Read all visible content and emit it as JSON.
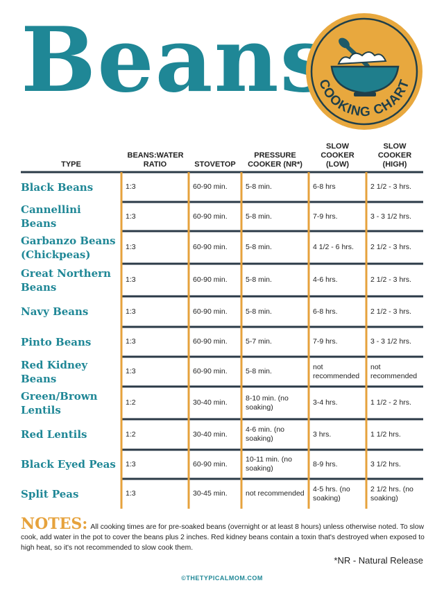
{
  "header": {
    "title": "Beans",
    "badge": "COOKING CHART"
  },
  "table": {
    "columns": [
      "TYPE",
      "BEANS:WATER RATIO",
      "STOVETOP",
      "PRESSURE COOKER (NR*)",
      "SLOW COOKER (LOW)",
      "SLOW COOKER (HIGH)"
    ],
    "rows": [
      [
        "Black Beans",
        "1:3",
        "60-90 min.",
        "5-8 min.",
        "6-8 hrs",
        "2 1/2 - 3 hrs."
      ],
      [
        "Cannellini Beans",
        "1:3",
        "60-90 min.",
        "5-8 min.",
        "7-9 hrs.",
        "3 - 3 1/2 hrs."
      ],
      [
        "Garbanzo Beans (Chickpeas)",
        "1:3",
        "60-90 min.",
        "5-8 min.",
        "4 1/2 - 6 hrs.",
        "2 1/2 - 3 hrs."
      ],
      [
        "Great Northern Beans",
        "1:3",
        "60-90 min.",
        "5-8 min.",
        "4-6 hrs.",
        "2 1/2 - 3 hrs."
      ],
      [
        "Navy Beans",
        "1:3",
        "60-90 min.",
        "5-8 min.",
        "6-8 hrs.",
        "2 1/2 - 3 hrs."
      ],
      [
        "Pinto Beans",
        "1:3",
        "60-90 min.",
        "5-7 min.",
        "7-9 hrs.",
        "3 - 3 1/2 hrs."
      ],
      [
        "Red Kidney Beans",
        "1:3",
        "60-90 min.",
        "5-8 min.",
        "not recommended",
        "not recommended"
      ],
      [
        "Green/Brown Lentils",
        "1:2",
        "30-40 min.",
        "8-10 min. (no soaking)",
        "3-4 hrs.",
        "1 1/2 - 2 hrs."
      ],
      [
        "Red Lentils",
        "1:2",
        "30-40 min.",
        "4-6 min. (no soaking)",
        "3 hrs.",
        "1 1/2 hrs."
      ],
      [
        "Black Eyed Peas",
        "1:3",
        "60-90 min.",
        "10-11 min. (no soaking)",
        "8-9 hrs.",
        "3 1/2 hrs."
      ],
      [
        "Split Peas",
        "1:3",
        "30-45 min.",
        "not recommended",
        "4-5 hrs. (no soaking)",
        "2 1/2 hrs. (no soaking)"
      ]
    ]
  },
  "notes": {
    "label": "NOTES:",
    "text": "All cooking times are for pre-soaked beans (overnight or at least 8 hours) unless otherwise noted. To slow cook, add water in the pot to cover the beans plus 2 inches. Red kidney beans contain a toxin that's destroyed when exposed to high heat, so it's not recommended to slow cook them."
  },
  "footnote": "*NR - Natural Release",
  "site": "©THETYPICALMOM.COM"
}
